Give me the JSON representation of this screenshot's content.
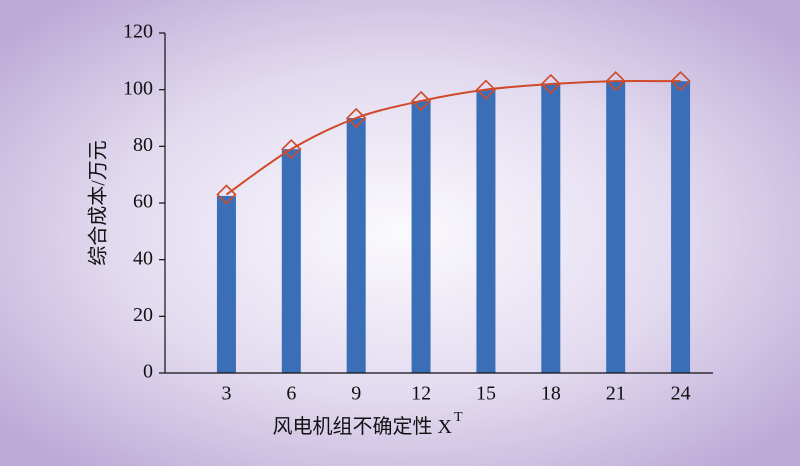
{
  "chart_data": {
    "type": "bar-line",
    "y_label": "综合成本/万元",
    "x_label": "风电机组不确定性 X",
    "x_label_sup": "T",
    "categories": [
      "3",
      "6",
      "9",
      "12",
      "15",
      "18",
      "21",
      "24"
    ],
    "series": [
      {
        "type": "bar",
        "color": "#3a6fb8",
        "values": [
          62.5,
          79,
          90,
          96,
          100,
          102,
          103,
          103
        ]
      },
      {
        "type": "line",
        "color": "#d04a2a",
        "values": [
          63,
          79,
          90,
          96,
          100,
          102,
          103,
          103
        ]
      }
    ],
    "ylim": [
      0,
      120
    ],
    "yticks": [
      0,
      20,
      40,
      60,
      80,
      100,
      120
    ]
  }
}
